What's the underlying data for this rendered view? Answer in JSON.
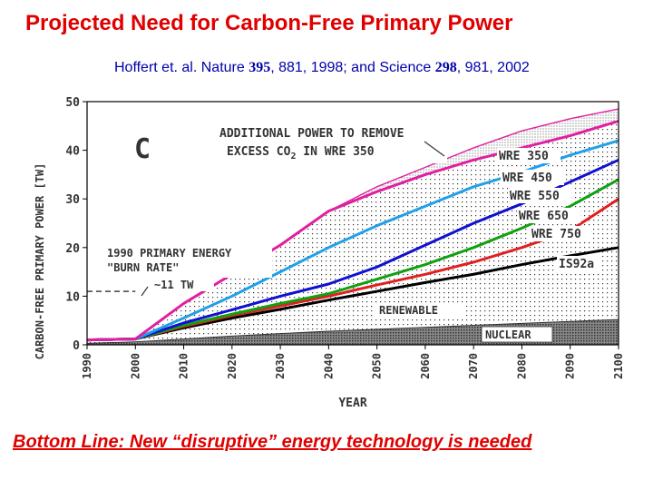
{
  "slide": {
    "title": "Projected Need for Carbon-Free Primary Power",
    "citation_prefix": "Hoffert et. al. Nature ",
    "citation_vol1": "395",
    "citation_middle": ", 881, 1998; and Science ",
    "citation_vol2": "298",
    "citation_suffix": ", 981, 2002",
    "bottom_line": "Bottom Line: New “disruptive” energy technology is needed"
  },
  "chart_data": {
    "type": "area",
    "panel_label": "C",
    "xlabel": "YEAR",
    "ylabel": "CARBON-FREE PRIMARY POWER [TW]",
    "xlim": [
      1990,
      2100
    ],
    "ylim": [
      0,
      50
    ],
    "x_ticks": [
      "1990",
      "2000",
      "2010",
      "2020",
      "2030",
      "2040",
      "2050",
      "2060",
      "2070",
      "2080",
      "2090",
      "2100"
    ],
    "y_ticks": [
      "0",
      "10",
      "20",
      "30",
      "40",
      "50"
    ],
    "x": [
      1990,
      2000,
      2010,
      2020,
      2030,
      2040,
      2050,
      2060,
      2070,
      2080,
      2090,
      2100
    ],
    "series": [
      {
        "name": "NUCLEAR",
        "color": "#555555",
        "values": [
          0.3,
          0.6,
          1.2,
          1.8,
          2.3,
          2.8,
          3.2,
          3.6,
          4.0,
          4.4,
          4.8,
          5.2
        ]
      },
      {
        "name": "IS92a",
        "color": "#000000",
        "values": [
          1.0,
          1.2,
          3.5,
          5.5,
          7.3,
          9.2,
          11.0,
          12.8,
          14.5,
          16.5,
          18.3,
          20.0
        ]
      },
      {
        "name": "WRE 750",
        "color": "#e02020",
        "values": [
          1.0,
          1.2,
          3.8,
          6.0,
          8.0,
          10.0,
          12.3,
          14.5,
          17.0,
          20.0,
          23.5,
          30.0
        ]
      },
      {
        "name": "WRE 650",
        "color": "#10a010",
        "values": [
          1.0,
          1.2,
          4.0,
          6.3,
          8.5,
          10.5,
          13.5,
          16.5,
          20.0,
          24.0,
          28.5,
          34.0
        ]
      },
      {
        "name": "WRE 550",
        "color": "#1010d0",
        "values": [
          1.0,
          1.2,
          4.5,
          7.2,
          10.0,
          12.5,
          16.0,
          20.5,
          25.0,
          29.0,
          33.5,
          38.0
        ]
      },
      {
        "name": "WRE 450",
        "color": "#20a0e8",
        "values": [
          1.0,
          1.2,
          5.5,
          10.0,
          15.0,
          20.0,
          24.5,
          28.5,
          32.5,
          35.5,
          39.0,
          42.0
        ]
      },
      {
        "name": "WRE 350",
        "color": "#e020a0",
        "values": [
          1.0,
          1.2,
          8.5,
          14.5,
          20.5,
          27.5,
          31.5,
          35.0,
          38.0,
          40.5,
          43.0,
          46.0
        ]
      },
      {
        "name": "Additional power to remove excess CO2 in WRE 350",
        "color": "#e020a0",
        "values": [
          1.0,
          1.2,
          8.5,
          14.5,
          20.5,
          27.5,
          32.5,
          36.5,
          40.5,
          44.0,
          46.5,
          48.5
        ]
      }
    ],
    "reference": {
      "value": 11,
      "label": "~11 TW",
      "note": "1990 PRIMARY ENERGY \"BURN RATE\""
    },
    "annotations": {
      "excess_line1": "ADDITIONAL POWER TO REMOVE",
      "excess_line2_a": "EXCESS CO",
      "excess_line2_sub": "2",
      "excess_line2_b": " IN WRE 350",
      "burn_rate_line1": "1990 PRIMARY ENERGY",
      "burn_rate_line2": "\"BURN RATE\"",
      "renewable": "RENEWABLE",
      "nuclear": "NUCLEAR",
      "wre350": "WRE 350",
      "wre450": "WRE 450",
      "wre550": "WRE 550",
      "wre650": "WRE 650",
      "wre750": "WRE 750",
      "is92a": "IS92a"
    }
  }
}
